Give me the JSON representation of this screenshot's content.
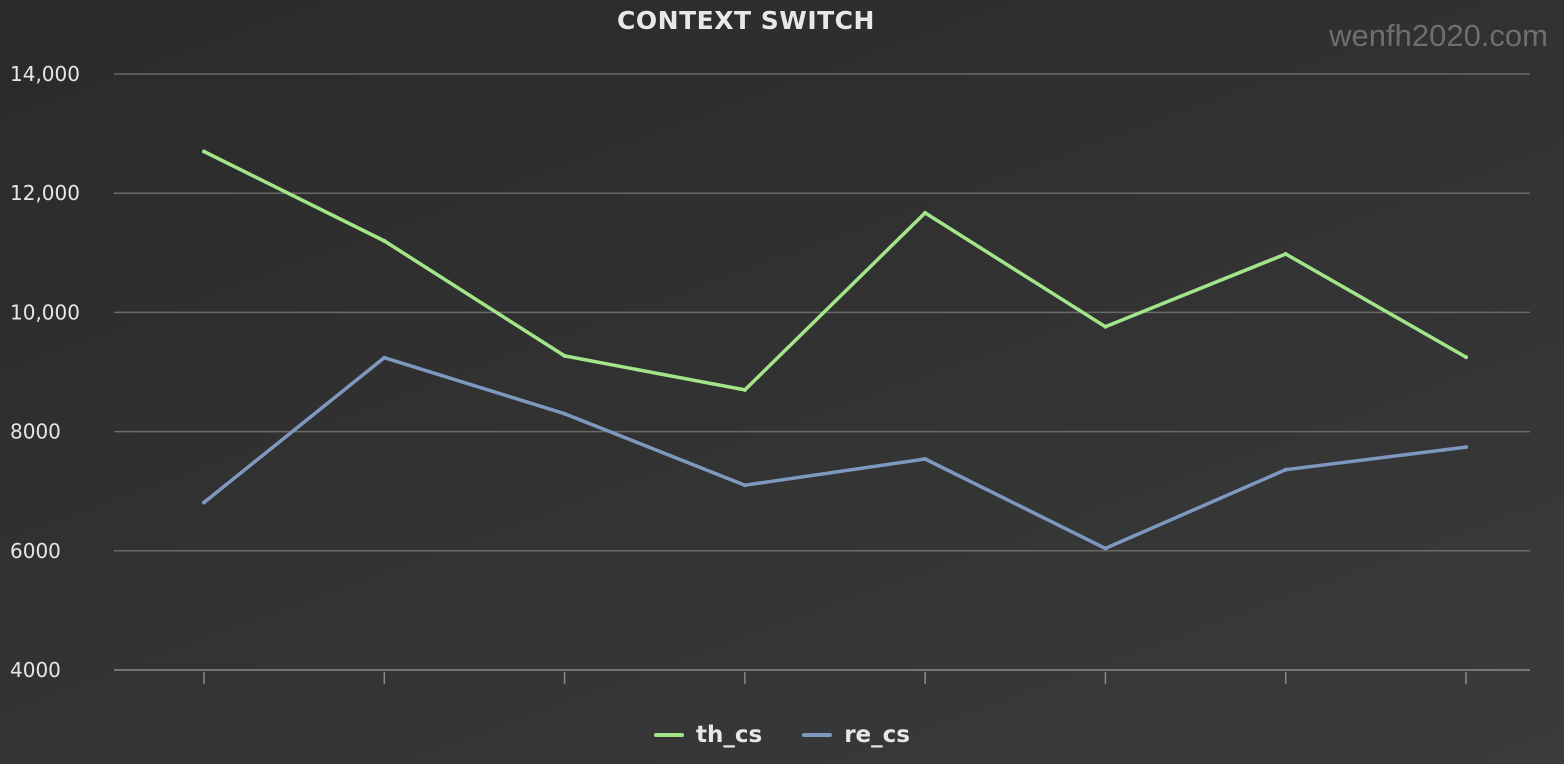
{
  "watermark": "wenfh2020.com",
  "chart_data": {
    "type": "line",
    "title": "CONTEXT SWITCH",
    "x": [
      1,
      2,
      3,
      4,
      5,
      6,
      7,
      8
    ],
    "ylim": [
      4000,
      14000
    ],
    "yticks": [
      4000,
      6000,
      8000,
      10000,
      12000,
      14000
    ],
    "ytick_labels": [
      "4000",
      "6000",
      "8000",
      "10,000",
      "12,000",
      "14,000"
    ],
    "grid": true,
    "legend_position": "bottom",
    "series": [
      {
        "name": "th_cs",
        "color": "#a3e68a",
        "values": [
          12700,
          11200,
          9270,
          8700,
          11670,
          9760,
          10980,
          9250
        ]
      },
      {
        "name": "re_cs",
        "color": "#7e99c0",
        "values": [
          6810,
          9240,
          8300,
          7100,
          7540,
          6040,
          7360,
          7740
        ]
      }
    ]
  }
}
